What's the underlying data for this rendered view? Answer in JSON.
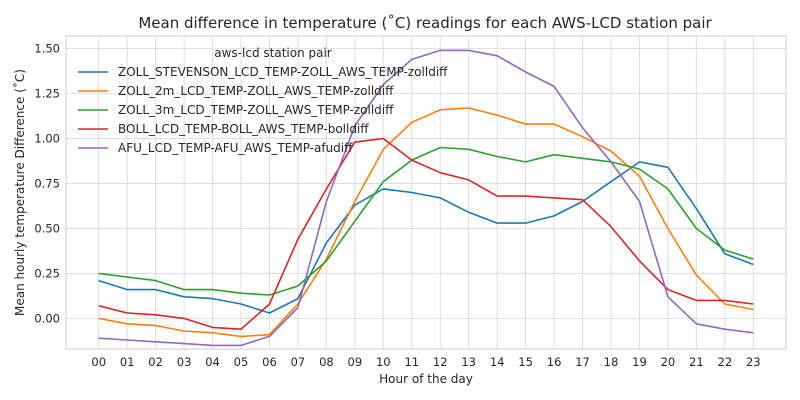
{
  "chart_data": {
    "type": "line",
    "title": "Mean difference in temperature (˚C) readings for each AWS-LCD station pair",
    "xlabel": "Hour of the day",
    "ylabel": "Mean hourly temperature Difference (˚C)",
    "x": [
      "00",
      "01",
      "02",
      "03",
      "04",
      "05",
      "06",
      "07",
      "08",
      "09",
      "10",
      "11",
      "12",
      "13",
      "14",
      "15",
      "16",
      "17",
      "18",
      "19",
      "20",
      "21",
      "22",
      "23"
    ],
    "ylim": [
      -0.17,
      1.57
    ],
    "yticks": [
      0.0,
      0.25,
      0.5,
      0.75,
      1.0,
      1.25,
      1.5
    ],
    "ytick_labels": [
      "0.00",
      "0.25",
      "0.50",
      "0.75",
      "1.00",
      "1.25",
      "1.50"
    ],
    "grid": true,
    "legend_title": "aws-lcd station pair",
    "legend_position": "upper-left",
    "series": [
      {
        "name": "ZOLL_STEVENSON_LCD_TEMP-ZOLL_AWS_TEMP-zolldiff",
        "color": "#1f77b4",
        "values": [
          0.21,
          0.16,
          0.16,
          0.12,
          0.11,
          0.08,
          0.03,
          0.11,
          0.42,
          0.63,
          0.72,
          0.7,
          0.67,
          0.59,
          0.53,
          0.53,
          0.57,
          0.65,
          0.76,
          0.87,
          0.84,
          0.61,
          0.36,
          0.3
        ]
      },
      {
        "name": "ZOLL_2m_LCD_TEMP-ZOLL_AWS_TEMP-zolldiff",
        "color": "#ff7f0e",
        "values": [
          0.0,
          -0.03,
          -0.04,
          -0.07,
          -0.08,
          -0.1,
          -0.09,
          0.08,
          0.33,
          0.65,
          0.94,
          1.09,
          1.16,
          1.17,
          1.13,
          1.08,
          1.08,
          1.01,
          0.93,
          0.79,
          0.5,
          0.24,
          0.08,
          0.05
        ]
      },
      {
        "name": "ZOLL_3m_LCD_TEMP-ZOLL_AWS_TEMP-zolldiff",
        "color": "#2ca02c",
        "values": [
          0.25,
          0.23,
          0.21,
          0.16,
          0.16,
          0.14,
          0.13,
          0.18,
          0.32,
          0.54,
          0.76,
          0.88,
          0.95,
          0.94,
          0.9,
          0.87,
          0.91,
          0.89,
          0.87,
          0.83,
          0.72,
          0.5,
          0.38,
          0.33
        ]
      },
      {
        "name": "BOLL_LCD_TEMP-BOLL_AWS_TEMP-bolldiff",
        "color": "#d62728",
        "values": [
          0.07,
          0.03,
          0.02,
          0.0,
          -0.05,
          -0.06,
          0.08,
          0.44,
          0.72,
          0.98,
          1.0,
          0.88,
          0.81,
          0.77,
          0.68,
          0.68,
          0.67,
          0.66,
          0.51,
          0.32,
          0.16,
          0.1,
          0.1,
          0.08
        ]
      },
      {
        "name": "AFU_LCD_TEMP-AFU_AWS_TEMP-afudiff",
        "color": "#9467bd",
        "values": [
          -0.11,
          -0.12,
          -0.13,
          -0.14,
          -0.15,
          -0.15,
          -0.1,
          0.06,
          0.65,
          1.07,
          1.3,
          1.44,
          1.49,
          1.49,
          1.46,
          1.37,
          1.29,
          1.06,
          0.87,
          0.65,
          0.12,
          -0.03,
          -0.06,
          -0.08
        ]
      }
    ]
  }
}
